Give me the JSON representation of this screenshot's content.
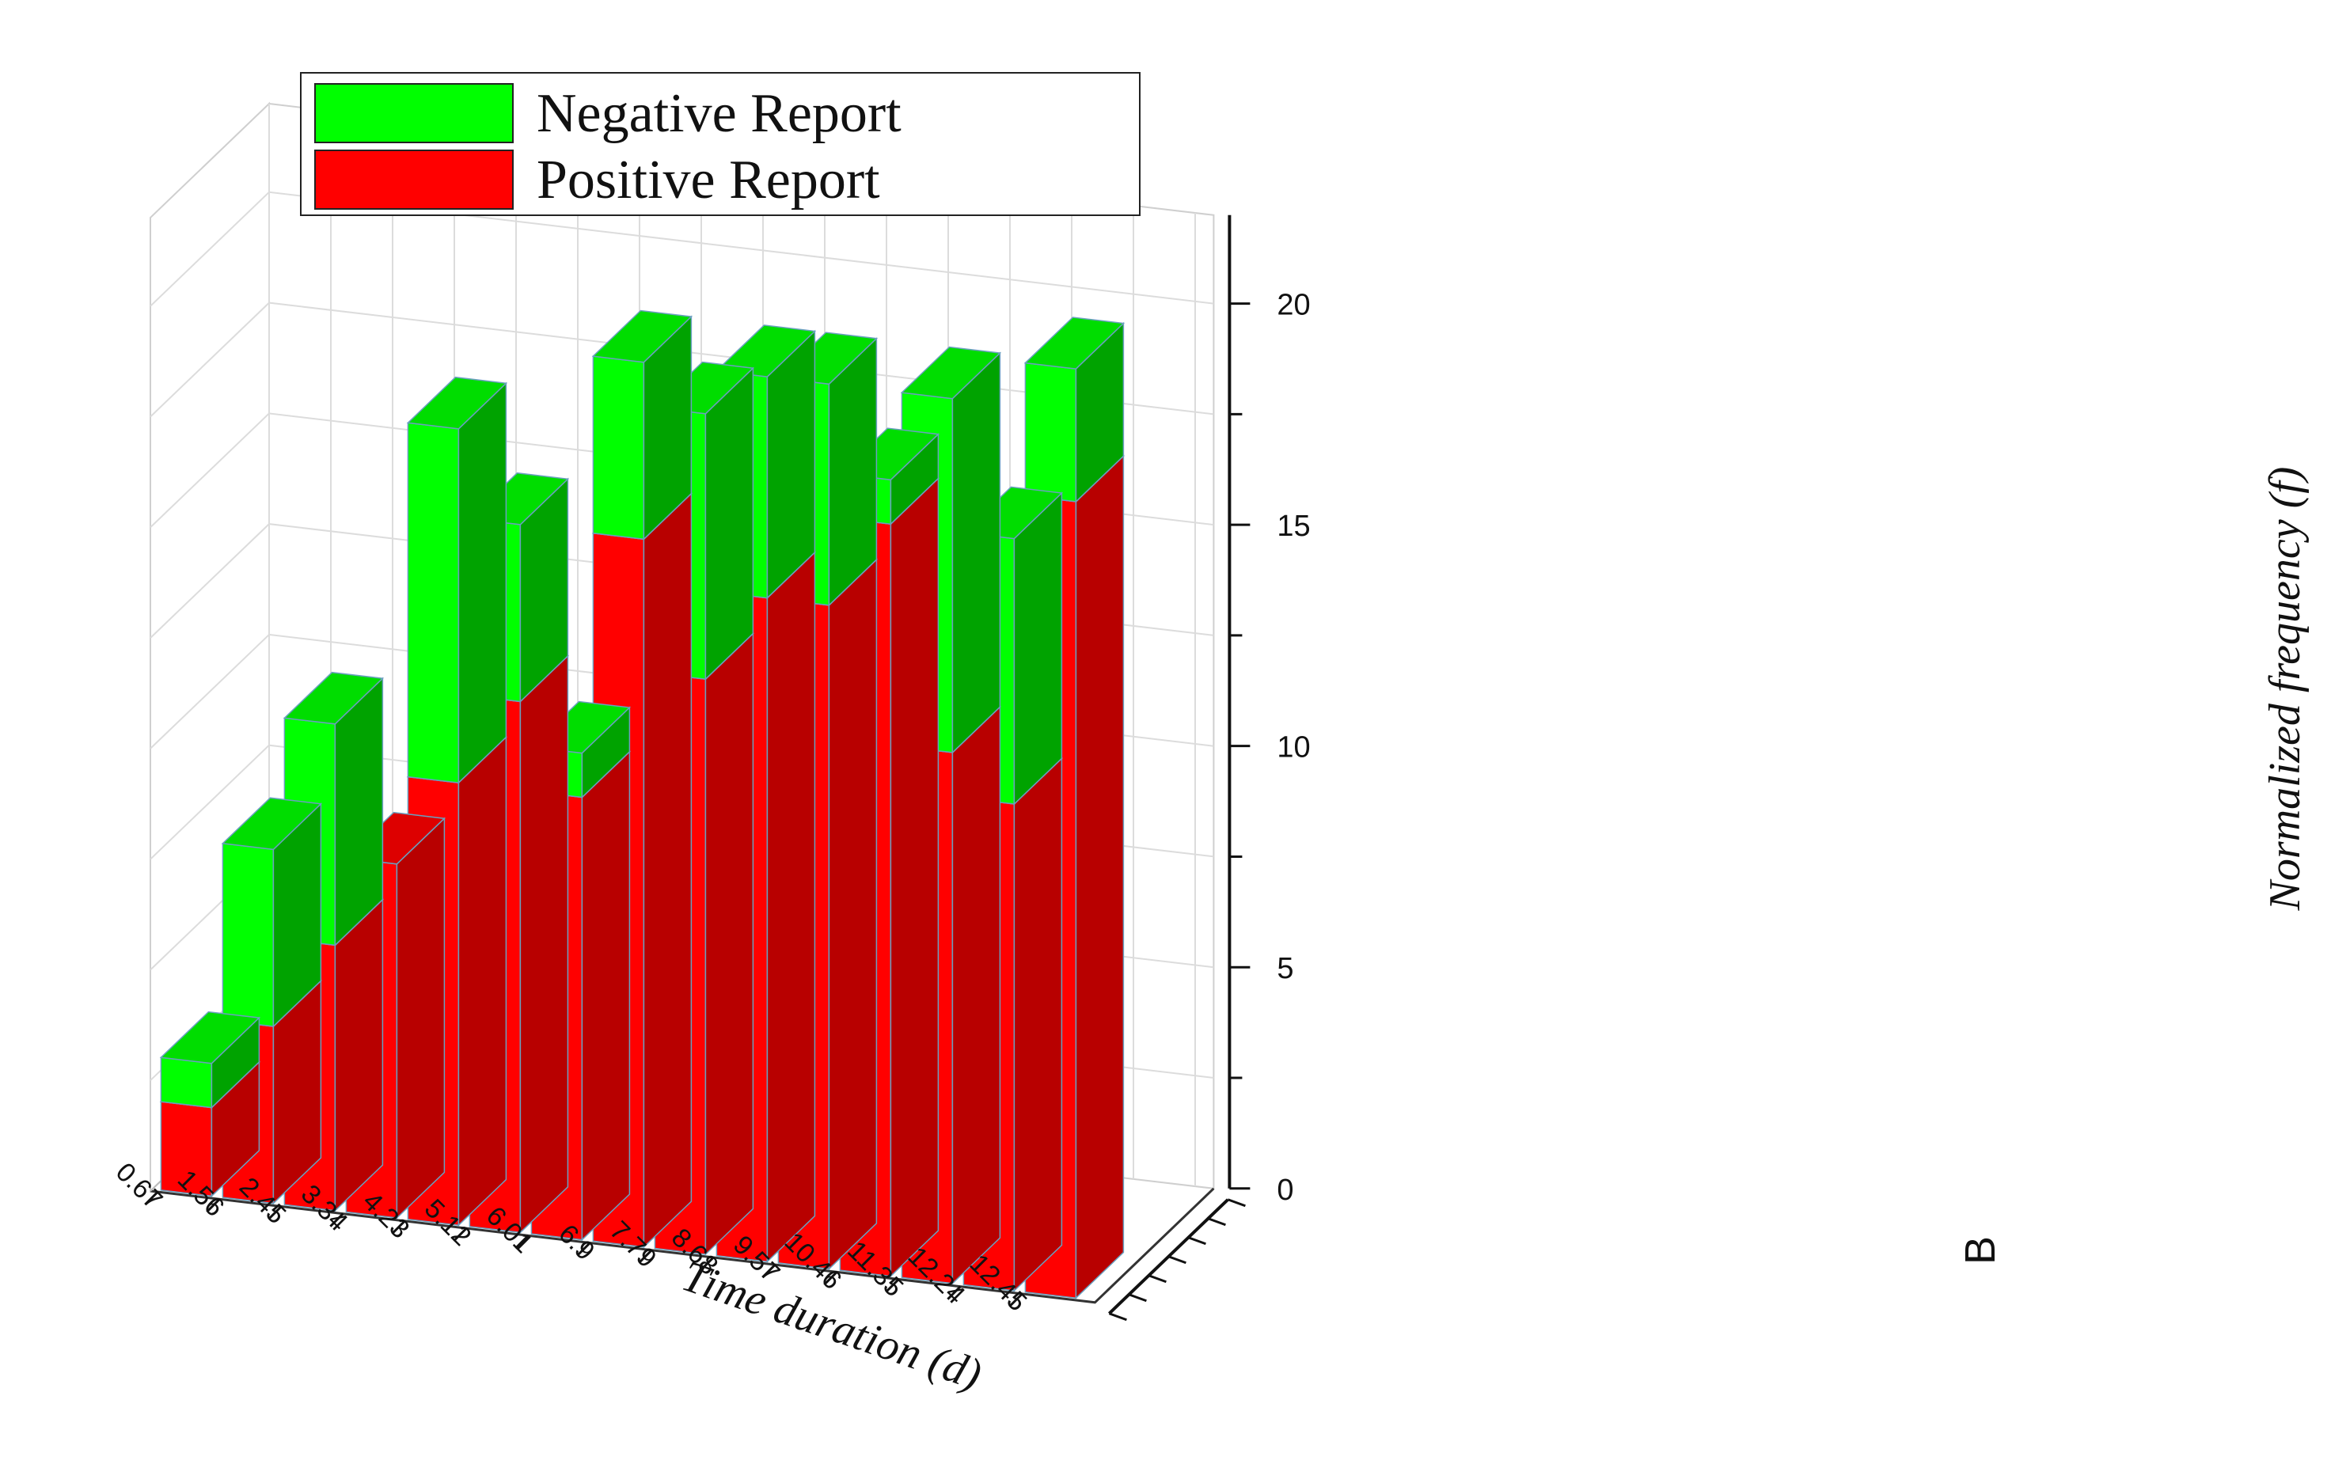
{
  "chart_data": {
    "type": "bar",
    "stacked": true,
    "projection": "3d",
    "categories": [
      "0.67",
      "1.56",
      "2.45",
      "3.34",
      "4.23",
      "5.12",
      "6.01",
      "6.9",
      "7.79",
      "8.68",
      "9.57",
      "10.46",
      "11.35",
      "12.24",
      "12.45"
    ],
    "series": [
      {
        "name": "Positive Report",
        "color": "#ff0000",
        "values": [
          2,
          4,
          6,
          8,
          10,
          12,
          10,
          16,
          13,
          15,
          15,
          17,
          12,
          11,
          18
        ]
      },
      {
        "name": "Negative Report",
        "color": "#00ff00",
        "values": [
          1,
          4,
          5,
          0,
          8,
          4,
          1,
          4,
          6,
          5,
          5,
          1,
          8,
          6,
          3
        ]
      }
    ],
    "xlabel": "Time duration (d)",
    "ylabel": "",
    "zlabel": "Normalized frequency (f)",
    "depth_tick": "B",
    "zlim": [
      0,
      22
    ],
    "zticks": [
      0,
      5,
      10,
      15,
      20
    ],
    "legend_position": "top-left",
    "grid": true
  }
}
